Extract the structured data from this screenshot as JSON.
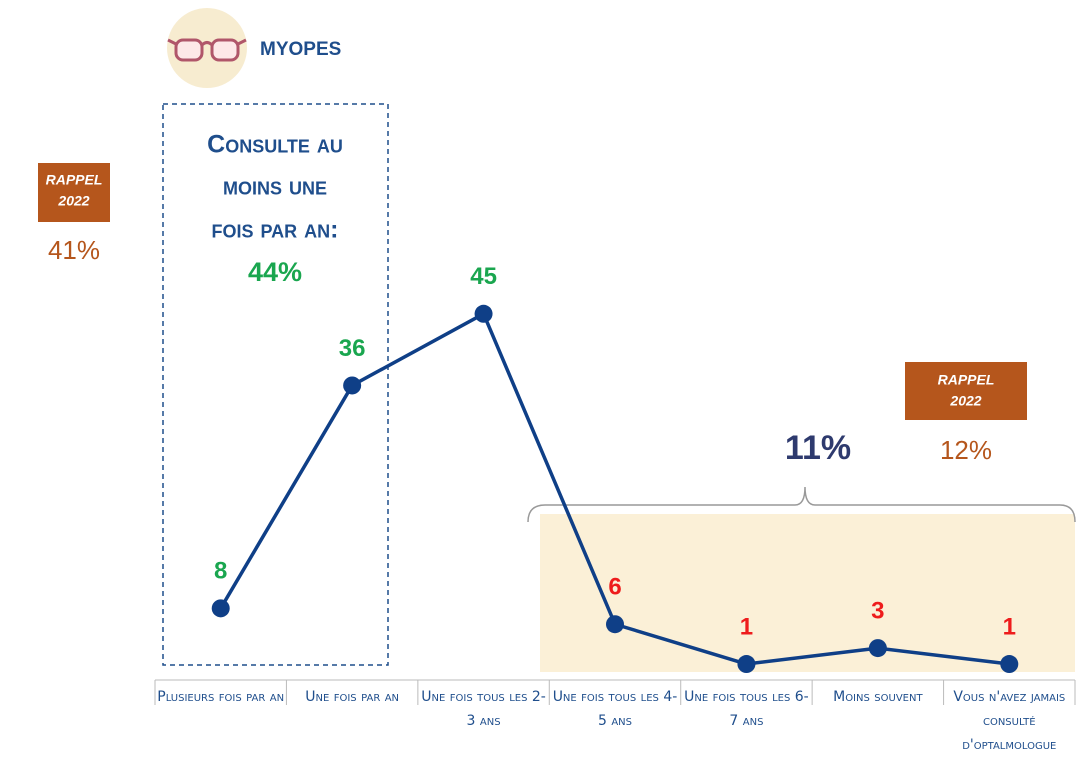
{
  "chart_data": {
    "type": "line",
    "title": "MYOPES",
    "categories": [
      "Plusieurs fois par an",
      "Une fois par an",
      "Une fois tous les 2-3 ans",
      "Une fois tous les 4-5 ans",
      "Une fois tous les 6-7 ans",
      "Moins souvent",
      "Vous n'avez jamais consulté d'optalmologue"
    ],
    "values": [
      8,
      36,
      45,
      6,
      1,
      3,
      1
    ],
    "color": "#0f3f87",
    "value_label_colors": [
      "#1aa64f",
      "#1aa64f",
      "#1aa64f",
      "#ee1c1c",
      "#ee1c1c",
      "#ee1c1c",
      "#ee1c1c"
    ],
    "ylim": [
      0,
      50
    ],
    "frequent_group": {
      "lines": [
        "Consulte au",
        "moins une",
        "fois par an:"
      ],
      "total": "44%",
      "recall_label": "Rappel",
      "recall_year": "2022",
      "recall_value": "41%"
    },
    "rare_group": {
      "total": "11%",
      "recall_label": "Rappel",
      "recall_year": "2022",
      "recall_value": "12%"
    }
  }
}
